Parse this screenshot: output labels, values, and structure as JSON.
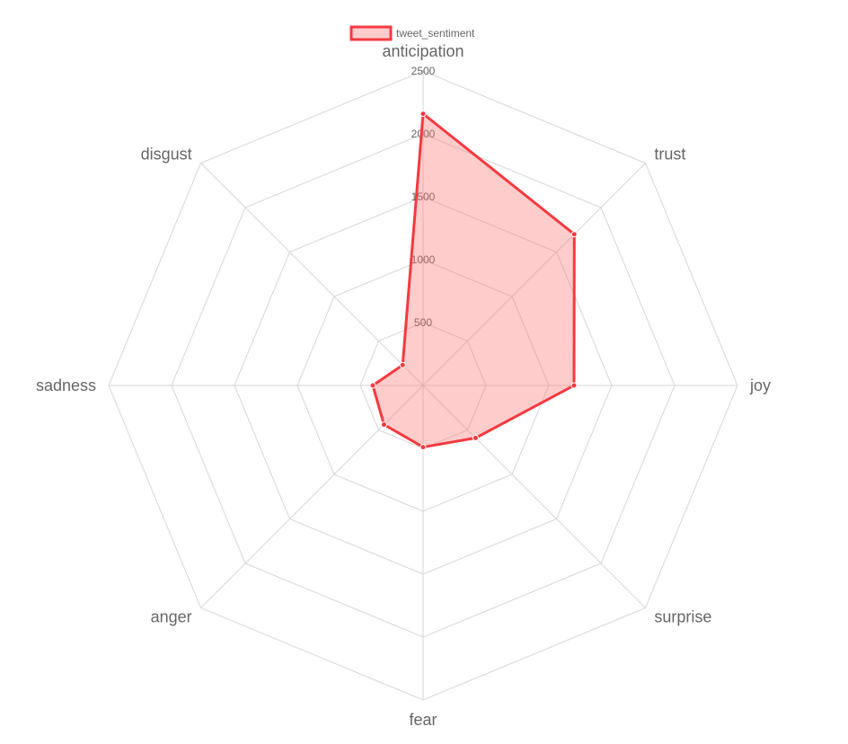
{
  "chart_data": {
    "type": "radar",
    "axes": [
      "anticipation",
      "trust",
      "joy",
      "surprise",
      "fear",
      "anger",
      "sadness",
      "disgust"
    ],
    "series": [
      {
        "name": "tweet_sentiment",
        "values": [
          2160,
          1700,
          1200,
          590,
          490,
          440,
          400,
          230
        ],
        "stroke": "#f43a3f",
        "fill": "rgba(255,110,110,0.35)"
      }
    ],
    "r_ticks": [
      500,
      1000,
      1500,
      2000,
      2500
    ],
    "r_range": [
      0,
      2500
    ],
    "grid": true,
    "legend_position": "top"
  },
  "colors": {
    "grid": "#d6d6d6",
    "label": "#666666"
  }
}
